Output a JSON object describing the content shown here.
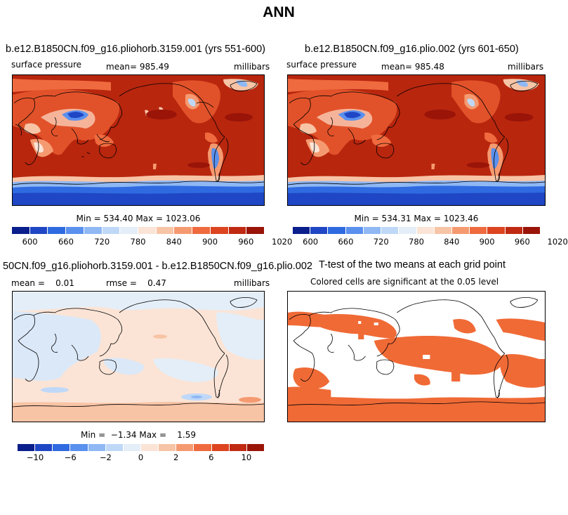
{
  "figure_title": "ANN",
  "chart_data": [
    {
      "type": "heatmap",
      "title": "b.e12.B1850CN.f09_g16.pliohorb.3159.001 (yrs 551-600)",
      "variable": "surface pressure",
      "mean_label": "mean= 985.49",
      "units": "millibars",
      "minmax_label": "Min = 534.40 Max = 1023.06",
      "min": 534.4,
      "max": 1023.06,
      "colorbar_ticks": [
        "600",
        "660",
        "720",
        "780",
        "840",
        "900",
        "960",
        "1020"
      ],
      "colorbar_colors": [
        "#0a1e8c",
        "#1f46c4",
        "#2f6ae0",
        "#5a90ee",
        "#8fb8f4",
        "#bfd8f8",
        "#e4eef8",
        "#fbe4d6",
        "#f8c4a6",
        "#f59a70",
        "#ef6a3e",
        "#dd4420",
        "#c02a12",
        "#9a1408"
      ]
    },
    {
      "type": "heatmap",
      "title": "b.e12.B1850CN.f09_g16.plio.002 (yrs 601-650)",
      "variable": "surface pressure",
      "mean_label": "mean= 985.48",
      "units": "millibars",
      "minmax_label": "Min = 534.31 Max = 1023.46",
      "min": 534.31,
      "max": 1023.46,
      "colorbar_ticks": [
        "600",
        "660",
        "720",
        "780",
        "840",
        "900",
        "960",
        "1020"
      ],
      "colorbar_colors": [
        "#0a1e8c",
        "#1f46c4",
        "#2f6ae0",
        "#5a90ee",
        "#8fb8f4",
        "#bfd8f8",
        "#e4eef8",
        "#fbe4d6",
        "#f8c4a6",
        "#f59a70",
        "#ef6a3e",
        "#dd4420",
        "#c02a12",
        "#9a1408"
      ]
    },
    {
      "type": "heatmap",
      "title": "50CN.f09_g16.pliohorb.3159.001 - b.e12.B1850CN.f09_g16.plio.002",
      "mean_label": "mean =    0.01",
      "rmse_label": "rmse =    0.47",
      "units": "millibars",
      "minmax_label": "Min =  −1.34 Max =    1.59",
      "min": -1.34,
      "max": 1.59,
      "colorbar_ticks": [
        "−10",
        "−6",
        "−2",
        "0",
        "2",
        "6",
        "10"
      ],
      "colorbar_colors": [
        "#0a1e8c",
        "#1f46c4",
        "#2f6ae0",
        "#5a90ee",
        "#8fb8f4",
        "#bfd8f8",
        "#e4eef8",
        "#fbe4d6",
        "#f8c4a6",
        "#f59a70",
        "#ef6a3e",
        "#dd4420",
        "#c02a12",
        "#9a1408"
      ]
    },
    {
      "type": "heatmap",
      "title": "T-test of the two means at each grid point",
      "subtitle": "Colored cells are significant at the 0.05 level",
      "significant_color": "#f06a36"
    }
  ]
}
